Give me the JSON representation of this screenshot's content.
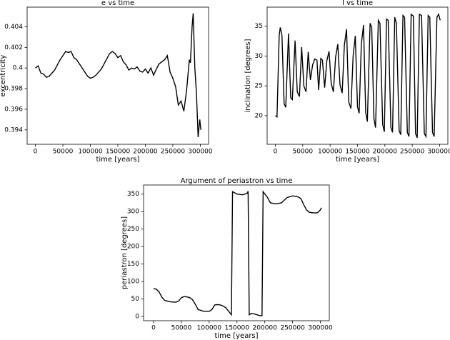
{
  "chart_data": [
    {
      "type": "line",
      "title": "e vs time",
      "xlabel": "time [years]",
      "ylabel": "excentricity",
      "color": "#000000",
      "x": [
        0,
        5000,
        10000,
        15000,
        20000,
        25000,
        30000,
        35000,
        40000,
        45000,
        50000,
        55000,
        60000,
        65000,
        70000,
        75000,
        80000,
        85000,
        90000,
        95000,
        100000,
        105000,
        110000,
        115000,
        120000,
        125000,
        130000,
        135000,
        140000,
        145000,
        150000,
        155000,
        160000,
        165000,
        170000,
        175000,
        180000,
        185000,
        190000,
        195000,
        200000,
        205000,
        210000,
        215000,
        220000,
        225000,
        230000,
        235000,
        240000,
        245000,
        250000,
        255000,
        260000,
        265000,
        270000,
        275000,
        280000,
        282000,
        285000,
        287000,
        290000,
        293000,
        296000,
        299000,
        301000
      ],
      "values": [
        0.4,
        0.4002,
        0.3995,
        0.3994,
        0.3991,
        0.3992,
        0.3995,
        0.3998,
        0.4003,
        0.4008,
        0.4012,
        0.4016,
        0.4015,
        0.4016,
        0.401,
        0.4008,
        0.4004,
        0.4,
        0.3996,
        0.3992,
        0.399,
        0.3991,
        0.3993,
        0.3996,
        0.3999,
        0.4004,
        0.4009,
        0.4014,
        0.4016,
        0.4014,
        0.401,
        0.4012,
        0.4006,
        0.4003,
        0.3998,
        0.4,
        0.3999,
        0.4001,
        0.3997,
        0.3996,
        0.3999,
        0.3995,
        0.4,
        0.3993,
        0.3999,
        0.4004,
        0.4006,
        0.4008,
        0.4012,
        0.3996,
        0.399,
        0.3982,
        0.3964,
        0.3968,
        0.3958,
        0.3978,
        0.4008,
        0.4005,
        0.404,
        0.4053,
        0.4,
        0.3975,
        0.3933,
        0.395,
        0.394
      ],
      "xlim": [
        -15000,
        315000
      ],
      "xticks": [
        0,
        50000,
        100000,
        150000,
        200000,
        250000,
        300000
      ],
      "ylim": [
        0.3926,
        0.4059
      ],
      "yticks": [
        0.394,
        0.396,
        0.398,
        0.4,
        0.402,
        0.404
      ]
    },
    {
      "type": "line",
      "title": "I vs time",
      "xlabel": "time [years]",
      "ylabel": "inclination [degrees]",
      "color": "#000000",
      "x": [
        0,
        3000,
        7000,
        9000,
        12000,
        16000,
        19000,
        24000,
        28000,
        31000,
        36000,
        40000,
        44000,
        48000,
        52000,
        56000,
        60000,
        64000,
        68000,
        72000,
        76000,
        79000,
        83000,
        86000,
        90000,
        94000,
        98000,
        102000,
        106000,
        110000,
        114000,
        118000,
        122000,
        126000,
        130000,
        134000,
        138000,
        142000,
        146000,
        150000,
        153000,
        157000,
        161000,
        165000,
        168000,
        173000,
        176000,
        180000,
        183000,
        188000,
        191000,
        196000,
        199000,
        203000,
        206000,
        211000,
        214000,
        218000,
        221000,
        226000,
        229000,
        233000,
        236000,
        241000,
        244000,
        248000,
        252000,
        256000,
        259000,
        263000,
        267000,
        272000,
        275000,
        279000,
        282000,
        287000,
        290000,
        295000,
        298000,
        301000
      ],
      "values": [
        20,
        19.8,
        33.5,
        34.8,
        33.5,
        22,
        21.4,
        33.8,
        23,
        22.7,
        32.6,
        24,
        23.2,
        31.5,
        25,
        24,
        30.7,
        26,
        28.5,
        29.5,
        29.3,
        24.3,
        29.6,
        29.3,
        24.7,
        29.2,
        30.8,
        25.4,
        24,
        29.8,
        32,
        25.2,
        23.8,
        31.8,
        34.5,
        22.3,
        21.2,
        30,
        33.4,
        21.5,
        20.4,
        32,
        35.2,
        20.5,
        19,
        35.5,
        34.8,
        19.5,
        18,
        36,
        35.5,
        18.5,
        17.3,
        36.2,
        36,
        18,
        17.2,
        36.5,
        35.5,
        17.5,
        16.8,
        36.8,
        36.5,
        17.2,
        16.5,
        37,
        36.7,
        17,
        16.3,
        37,
        36.8,
        17,
        16.5,
        36.8,
        36.5,
        17.2,
        16.5,
        36.5,
        37,
        36
      ],
      "xlim": [
        -15000,
        315000
      ],
      "xticks": [
        0,
        50000,
        100000,
        150000,
        200000,
        250000,
        300000
      ],
      "ylim": [
        15.2,
        38.2
      ],
      "yticks": [
        20,
        25,
        30,
        35
      ]
    },
    {
      "type": "line",
      "title": "Argument of periastron vs time",
      "xlabel": "time [years]",
      "ylabel": "periastron [degrees]",
      "color": "#000000",
      "x": [
        0,
        5000,
        10000,
        15000,
        20000,
        30000,
        40000,
        45000,
        50000,
        55000,
        60000,
        65000,
        70000,
        75000,
        80000,
        90000,
        100000,
        105000,
        110000,
        115000,
        120000,
        125000,
        130000,
        135000,
        140000,
        142000,
        150000,
        160000,
        168000,
        170000,
        172000,
        176000,
        180000,
        190000,
        195000,
        197000,
        205000,
        210000,
        220000,
        230000,
        240000,
        250000,
        260000,
        265000,
        270000,
        275000,
        280000,
        290000,
        295000,
        300000,
        302000
      ],
      "values": [
        80,
        78,
        70,
        55,
        46,
        42,
        41,
        44,
        54,
        57,
        56,
        54,
        48,
        35,
        20,
        15,
        15,
        20,
        33,
        34,
        33,
        30,
        25,
        15,
        5,
        357,
        350,
        348,
        352,
        358,
        5,
        9,
        8,
        3,
        2,
        357,
        340,
        325,
        322,
        325,
        340,
        345,
        342,
        337,
        320,
        305,
        298,
        296,
        297,
        305,
        311
      ],
      "xlim": [
        -18000,
        316000
      ],
      "xticks": [
        0,
        50000,
        100000,
        150000,
        200000,
        250000,
        300000
      ],
      "ylim": [
        -12,
        376
      ],
      "yticks": [
        0,
        50,
        100,
        150,
        200,
        250,
        300,
        350
      ]
    }
  ]
}
